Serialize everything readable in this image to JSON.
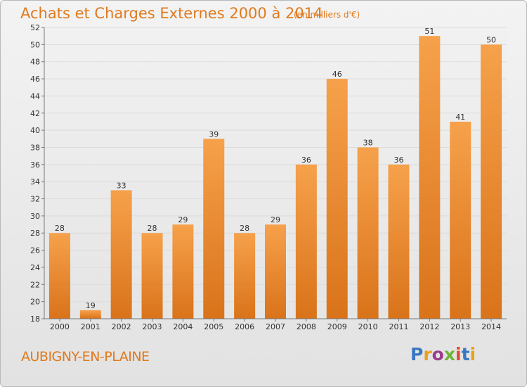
{
  "header": {
    "title": "Achats et Charges Externes 2000 à 2014",
    "subtitle": "(en milliers d'€)"
  },
  "footer": {
    "commune": "AUBIGNY-EN-PLAINE",
    "brand": "Proxiti",
    "brand_colors": [
      "#3a78c2",
      "#e8a21a",
      "#9a3c8e",
      "#6fb535",
      "#e24b2f",
      "#3a78c2",
      "#e8a21a"
    ]
  },
  "colors": {
    "bar_top": "#f6a14b",
    "bar_bottom": "#d9731a",
    "accent": "#e07a1c",
    "grid": "#dcdcdc"
  },
  "chart_data": {
    "type": "bar",
    "title": "Achats et Charges Externes 2000 à 2014",
    "subtitle": "(en milliers d'€)",
    "categories": [
      "2000",
      "2001",
      "2002",
      "2003",
      "2004",
      "2005",
      "2006",
      "2007",
      "2008",
      "2009",
      "2010",
      "2011",
      "2012",
      "2013",
      "2014"
    ],
    "values": [
      28,
      19,
      33,
      28,
      29,
      39,
      28,
      29,
      36,
      46,
      38,
      36,
      51,
      41,
      50
    ],
    "ylim": [
      18,
      52
    ],
    "yticks": [
      18,
      20,
      22,
      24,
      26,
      28,
      30,
      32,
      34,
      36,
      38,
      40,
      42,
      44,
      46,
      48,
      50,
      52
    ],
    "xlabel": "",
    "ylabel": "",
    "grid": true,
    "data_labels": true
  }
}
